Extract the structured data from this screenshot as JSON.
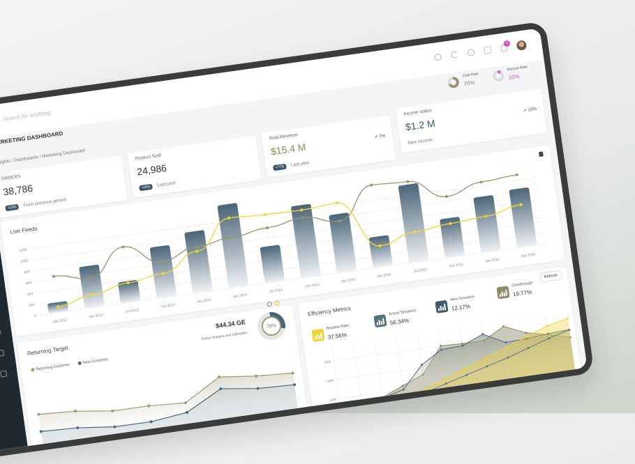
{
  "header": {
    "search_placeholder": "Search for anything",
    "notification_count": "6",
    "icons": [
      "settings-icon",
      "moon-icon",
      "aperture-icon",
      "fullscreen-icon",
      "bell-icon"
    ]
  },
  "rates": [
    {
      "label": "Click Rate",
      "value": "70%",
      "color": "#9a9470",
      "fraction": 0.7
    },
    {
      "label": "Bounce Rate",
      "value": "10%",
      "color": "#d44fb6",
      "fraction": 0.1
    }
  ],
  "page": {
    "title": "MARKETING DASHBOARD",
    "breadcrumb": [
      "Insights",
      "Dashboards",
      "Marketing Dashboard"
    ]
  },
  "kpis": [
    {
      "label": "ORDERS",
      "value": "38,786",
      "pill": "+15%",
      "sub": "From previous period"
    },
    {
      "label": "Product Sold",
      "value": "24,986",
      "pill": "+05%",
      "sub": "Last year"
    },
    {
      "label": "Total Revenue",
      "value": "$15.4 M",
      "pill": "+77%",
      "sub": "Last year",
      "trend": "7%"
    },
    {
      "label": "Income status",
      "value": "$1.2 M",
      "sub": "New income",
      "trend": "10%"
    }
  ],
  "live_feeds": {
    "title": "Live Feeds"
  },
  "returning": {
    "title": "Returning Target",
    "amount": "$44.34 GE",
    "amount_sub": "Redux margins and estimates",
    "donut_label": "78%",
    "donut_fraction": 0.78,
    "legend": [
      "Returning Customer",
      "New Customer"
    ]
  },
  "efficiency": {
    "title": "Efficiency Metrics",
    "refresh_label": "Refresh",
    "metrics": [
      {
        "label": "Bounce Rate",
        "value": "37.56%",
        "color": "#f2d22e"
      },
      {
        "label": "Actual Sessions",
        "value": "56.34%",
        "color": "#56707f"
      },
      {
        "label": "New Sessions",
        "value": "12.17%",
        "color": "#3f5a6b"
      },
      {
        "label": "Clickthrough",
        "value": "19.77%",
        "color": "#8e8a66"
      }
    ]
  },
  "chart_data": [
    {
      "type": "bar",
      "title": "Live Feeds",
      "categories": [
        "Jan 2013",
        "Apr 2013",
        "Jul 2013",
        "Oct 2013",
        "Jan 2014",
        "Apr 2014",
        "Jul 2014",
        "Oct 2014",
        "Jan 2015",
        "Apr 2015",
        "Jul 2015",
        "Oct 2015",
        "Jan 2016",
        "Apr 2016"
      ],
      "yticks": [
        0,
        200,
        400,
        600,
        800,
        1000,
        1200
      ],
      "ylim": [
        0,
        1400
      ],
      "grid": true,
      "series": [
        {
          "type": "bar",
          "color": "#4a6578",
          "values": [
            180,
            750,
            380,
            920,
            1100,
            1500,
            650,
            1300,
            1050,
            550,
            1400,
            700,
            1000,
            1050
          ]
        },
        {
          "type": "line",
          "color": "#9a9470",
          "values": [
            650,
            530,
            1000,
            640,
            820,
            900,
            980,
            1070,
            920,
            1480,
            1450,
            1090,
            1260,
            1300
          ]
        },
        {
          "type": "line",
          "color": "#f5d630",
          "values": [
            100,
            230,
            350,
            430,
            740,
            1250,
            1220,
            1210,
            1250,
            380,
            540,
            600,
            640,
            760
          ]
        }
      ]
    },
    {
      "type": "area",
      "title": "Returning Target",
      "series": [
        {
          "name": "Returning Customer",
          "color": "#a09a74",
          "values": [
            55,
            52,
            45,
            45,
            42,
            72,
            66,
            63
          ]
        },
        {
          "name": "New Customer",
          "color": "#4a6a80",
          "values": [
            30,
            28,
            22,
            22,
            28,
            55,
            48,
            46
          ]
        }
      ]
    },
    {
      "type": "area",
      "title": "Efficiency Metrics",
      "yticks": [
        "100K",
        "200K",
        "300K"
      ],
      "ylim": [
        0,
        380
      ],
      "grid": true,
      "series": [
        {
          "color": "#8e8a66",
          "values": [
            10,
            40,
            75,
            120,
            165,
            300,
            295,
            295,
            355,
            305,
            280,
            250
          ]
        },
        {
          "color": "#4a6a80",
          "values": [
            8,
            35,
            70,
            100,
            215,
            280,
            285,
            330,
            270,
            275,
            285,
            290
          ]
        },
        {
          "color": "#f2d22e",
          "values": [
            0,
            20,
            40,
            60,
            85,
            125,
            165,
            205,
            245,
            285,
            325,
            350
          ]
        },
        {
          "color": "#5b7889",
          "values": [
            3,
            15,
            35,
            55,
            70,
            100,
            130,
            160,
            190,
            225,
            260,
            290
          ]
        }
      ]
    }
  ]
}
